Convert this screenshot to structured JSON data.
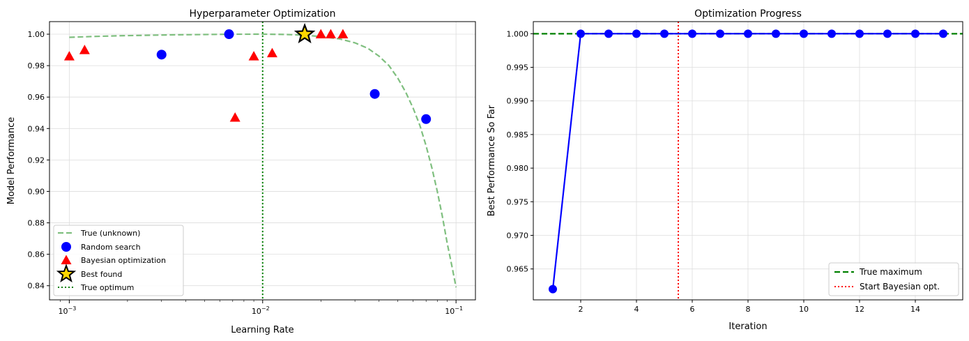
{
  "colors": {
    "true_curve": "#7fbf7f",
    "random": "#0000ff",
    "bayes": "#ff0000",
    "best_fill": "#ffd700",
    "optimum": "#008000",
    "progress": "#0000ff",
    "start_bayes": "#ff0000"
  },
  "chart_data": [
    {
      "type": "scatter",
      "title": "Hyperparameter Optimization",
      "xlabel": "Learning Rate",
      "ylabel": "Model Performance",
      "xscale": "log",
      "xlim": [
        0.00079,
        0.126
      ],
      "ylim": [
        0.831,
        1.008
      ],
      "yticks": [
        0.84,
        0.86,
        0.88,
        0.9,
        0.92,
        0.94,
        0.96,
        0.98,
        1.0
      ],
      "ytick_labels": [
        "0.84",
        "0.86",
        "0.88",
        "0.90",
        "0.92",
        "0.94",
        "0.96",
        "0.98",
        "1.00"
      ],
      "xticks": [
        0.001,
        0.01,
        0.1
      ],
      "xtick_base": [
        "10",
        "10",
        "10"
      ],
      "xtick_exp": [
        "−3",
        "−2",
        "−1"
      ],
      "grid": true,
      "legend_position": "bottom-left",
      "series": [
        {
          "name": "True (unknown)",
          "kind": "line",
          "style": "dashed",
          "x": [
            0.001,
            0.0013,
            0.0018,
            0.0025,
            0.0035,
            0.005,
            0.007,
            0.01,
            0.013,
            0.016,
            0.02,
            0.025,
            0.03,
            0.035,
            0.04,
            0.045,
            0.05,
            0.055,
            0.06,
            0.065,
            0.07,
            0.075,
            0.08,
            0.085,
            0.09,
            0.095,
            0.1
          ],
          "y": [
            0.998,
            0.9985,
            0.999,
            0.9993,
            0.9996,
            0.9998,
            0.99995,
            1.0,
            0.99985,
            0.9995,
            0.9985,
            0.997,
            0.9945,
            0.991,
            0.986,
            0.98,
            0.972,
            0.963,
            0.953,
            0.942,
            0.929,
            0.915,
            0.9,
            0.884,
            0.867,
            0.853,
            0.839
          ]
        },
        {
          "name": "Random search",
          "kind": "scatter",
          "marker": "circle",
          "x": [
            0.003,
            0.0067,
            0.038,
            0.07
          ],
          "y": [
            0.987,
            1.0,
            0.962,
            0.946
          ]
        },
        {
          "name": "Bayesian optimization",
          "kind": "scatter",
          "marker": "triangle",
          "x": [
            0.001,
            0.0012,
            0.0072,
            0.009,
            0.0112,
            0.02,
            0.0225,
            0.026
          ],
          "y": [
            0.986,
            0.99,
            0.947,
            0.986,
            0.988,
            1.0,
            1.0,
            1.0
          ]
        },
        {
          "name": "Best found",
          "kind": "scatter",
          "marker": "star",
          "x": [
            0.0165
          ],
          "y": [
            1.0
          ]
        },
        {
          "name": "True optimum",
          "kind": "vline",
          "style": "dotted",
          "x": [
            0.01
          ]
        }
      ]
    },
    {
      "type": "line",
      "title": "Optimization Progress",
      "xlabel": "Iteration",
      "ylabel": "Best Performance So Far",
      "xlim": [
        0.3,
        15.7
      ],
      "ylim": [
        0.9604,
        1.0018
      ],
      "xticks": [
        2,
        4,
        6,
        8,
        10,
        12,
        14
      ],
      "xtick_labels": [
        "2",
        "4",
        "6",
        "8",
        "10",
        "12",
        "14"
      ],
      "yticks": [
        0.965,
        0.97,
        0.975,
        0.98,
        0.985,
        0.99,
        0.995,
        1.0
      ],
      "ytick_labels": [
        "0.965",
        "0.970",
        "0.975",
        "0.980",
        "0.985",
        "0.990",
        "0.995",
        "1.000"
      ],
      "grid": true,
      "legend_position": "bottom-right",
      "series": [
        {
          "name": "",
          "kind": "line",
          "marker": "circle",
          "x": [
            1,
            2,
            3,
            4,
            5,
            6,
            7,
            8,
            9,
            10,
            11,
            12,
            13,
            14,
            15
          ],
          "y": [
            0.962,
            1.0,
            1.0,
            1.0,
            1.0,
            1.0,
            1.0,
            1.0,
            1.0,
            1.0,
            1.0,
            1.0,
            1.0,
            1.0,
            1.0
          ]
        },
        {
          "name": "True maximum",
          "kind": "hline",
          "style": "dashed",
          "y": [
            1.0
          ]
        },
        {
          "name": "Start Bayesian opt.",
          "kind": "vline",
          "style": "dotted",
          "x": [
            5.5
          ]
        }
      ]
    }
  ]
}
